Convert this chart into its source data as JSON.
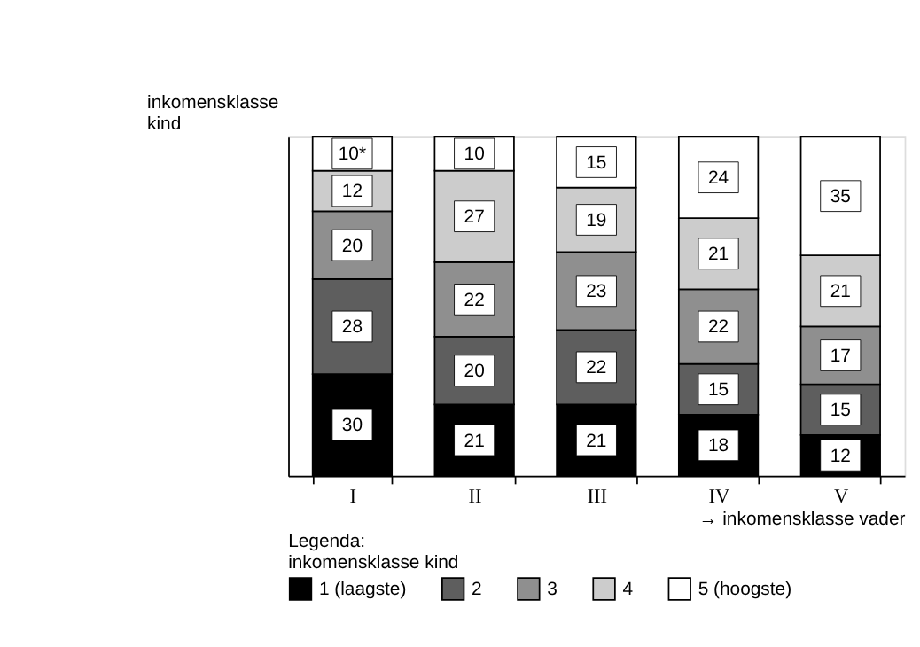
{
  "chart_data": {
    "type": "bar",
    "stacked": true,
    "categories": [
      "I",
      "II",
      "III",
      "IV",
      "V"
    ],
    "ylabel": "inkomensklasse\nkind",
    "xlabel": "→ inkomensklasse vader",
    "legend_title": "Legenda:\ninkomensklasse kind",
    "legend": "bottom left",
    "ylim": [
      0,
      100
    ],
    "tick_labels": "x",
    "series": [
      {
        "name": "1 (laagste)",
        "color": "#000000",
        "values": [
          30,
          21,
          21,
          18,
          12
        ],
        "value_labels": [
          "30",
          "21",
          "21",
          "18",
          "12"
        ]
      },
      {
        "name": "2",
        "color": "#5e5e5e",
        "values": [
          28,
          20,
          22,
          15,
          15
        ],
        "value_labels": [
          "28",
          "20",
          "22",
          "15",
          "15"
        ]
      },
      {
        "name": "3",
        "color": "#8f8f8f",
        "values": [
          20,
          22,
          23,
          22,
          17
        ],
        "value_labels": [
          "20",
          "22",
          "23",
          "22",
          "17"
        ]
      },
      {
        "name": "4",
        "color": "#cccccc",
        "values": [
          12,
          27,
          19,
          21,
          21
        ],
        "value_labels": [
          "12",
          "27",
          "19",
          "21",
          "21"
        ]
      },
      {
        "name": "5 (hoogste)",
        "color": "#ffffff",
        "values": [
          10,
          10,
          15,
          24,
          35
        ],
        "value_labels": [
          "10*",
          "10",
          "15",
          "24",
          "35"
        ]
      }
    ]
  }
}
